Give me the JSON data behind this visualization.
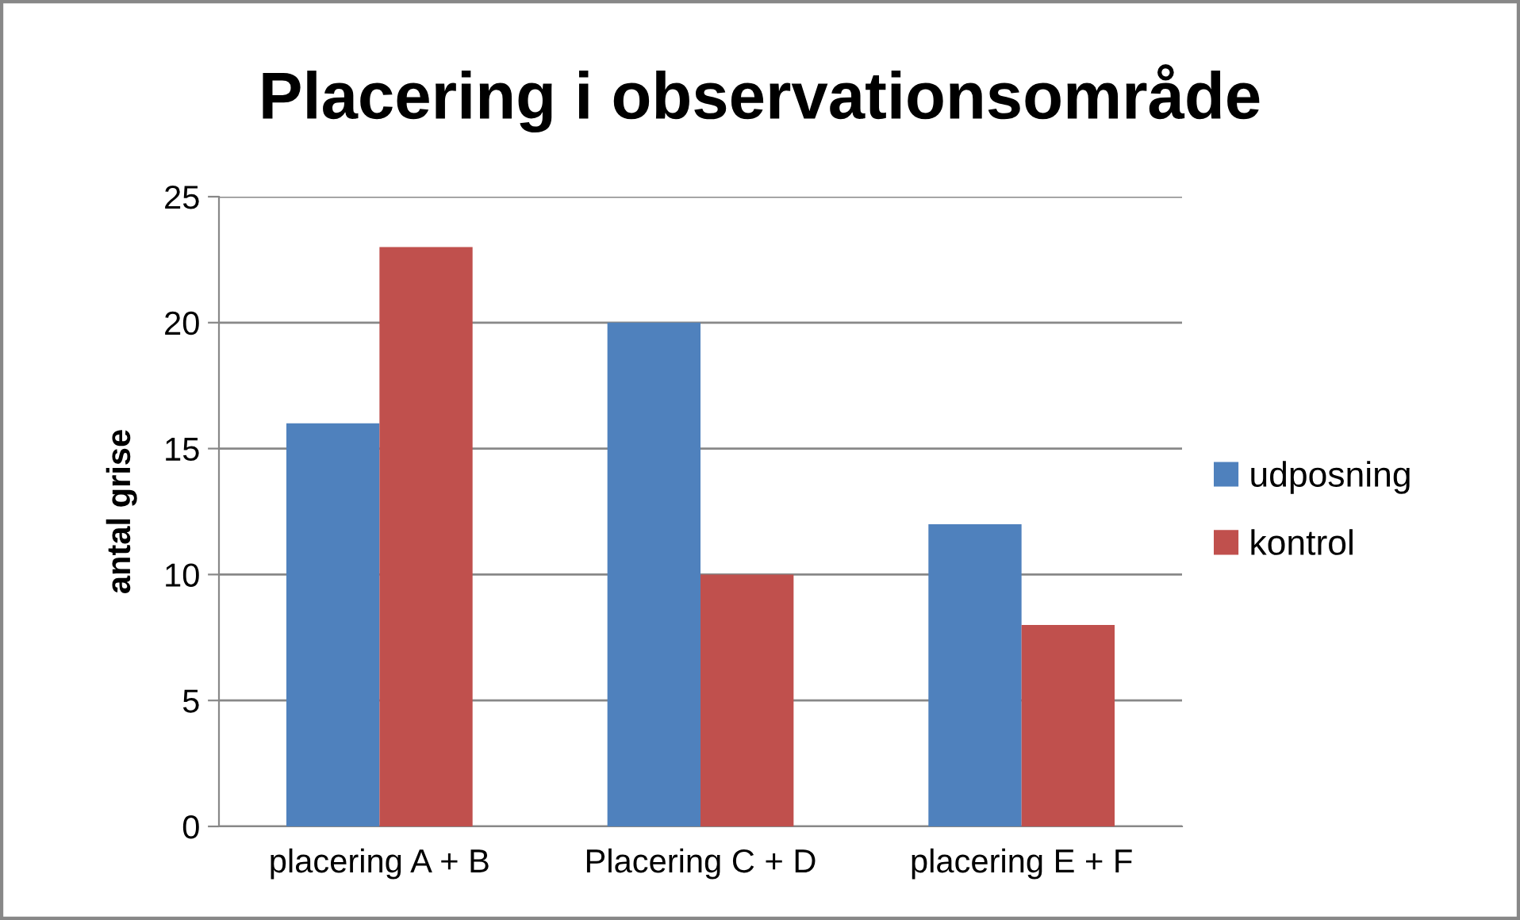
{
  "chart_data": {
    "type": "bar",
    "title": "Placering i observationsområde",
    "ylabel": "antal grise",
    "categories": [
      "placering A + B",
      "Placering C + D",
      "placering E + F"
    ],
    "series": [
      {
        "name": "udposning",
        "color": "#4f81bd",
        "values": [
          16,
          20,
          12
        ]
      },
      {
        "name": "kontrol",
        "color": "#c0504d",
        "values": [
          23,
          10,
          8
        ]
      }
    ],
    "ylim": [
      0,
      25
    ],
    "yticks": [
      0,
      5,
      10,
      15,
      20,
      25
    ],
    "grid": "y",
    "legend": "right"
  }
}
